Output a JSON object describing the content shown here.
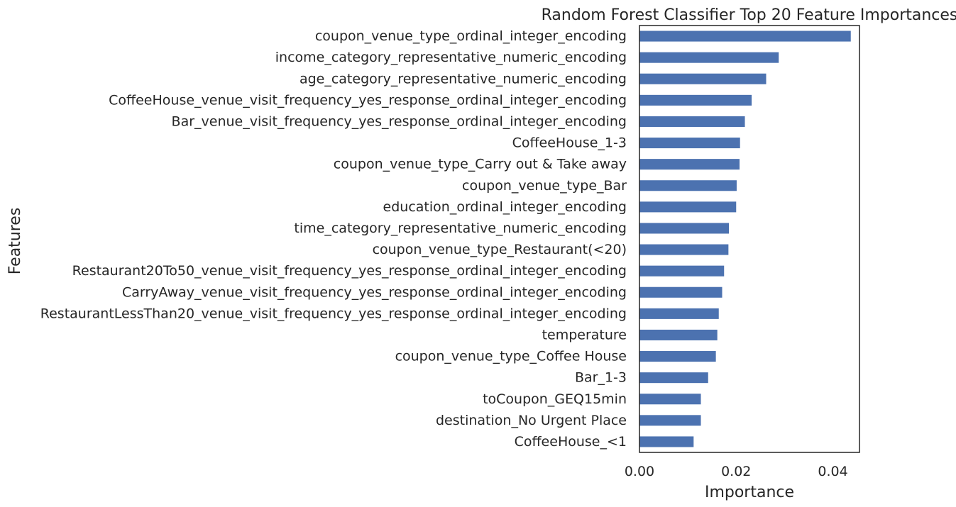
{
  "chart_data": {
    "type": "bar",
    "orientation": "horizontal",
    "title": "Random Forest Classifier Top 20 Feature Importances",
    "xlabel": "Importance",
    "ylabel": "Features",
    "xlim": [
      0,
      0.0455
    ],
    "xticks": [
      0.0,
      0.02,
      0.04
    ],
    "xtick_labels": [
      "0.00",
      "0.02",
      "0.04"
    ],
    "grid": false,
    "legend": "none",
    "bar_color": "#4c72b0",
    "categories": [
      "coupon_venue_type_ordinal_integer_encoding",
      "income_category_representative_numeric_encoding",
      "age_category_representative_numeric_encoding",
      "CoffeeHouse_venue_visit_frequency_yes_response_ordinal_integer_encoding",
      "Bar_venue_visit_frequency_yes_response_ordinal_integer_encoding",
      "CoffeeHouse_1-3",
      "coupon_venue_type_Carry out & Take away",
      "coupon_venue_type_Bar",
      "education_ordinal_integer_encoding",
      "time_category_representative_numeric_encoding",
      "coupon_venue_type_Restaurant(<20)",
      "Restaurant20To50_venue_visit_frequency_yes_response_ordinal_integer_encoding",
      "CarryAway_venue_visit_frequency_yes_response_ordinal_integer_encoding",
      "RestaurantLessThan20_venue_visit_frequency_yes_response_ordinal_integer_encoding",
      "temperature",
      "coupon_venue_type_Coffee House",
      "Bar_1-3",
      "toCoupon_GEQ15min",
      "destination_No Urgent Place",
      "CoffeeHouse_<1"
    ],
    "values": [
      0.0437,
      0.0288,
      0.0262,
      0.0232,
      0.0218,
      0.0208,
      0.0207,
      0.0201,
      0.02,
      0.0185,
      0.0184,
      0.0175,
      0.0171,
      0.0164,
      0.0161,
      0.0158,
      0.0142,
      0.0127,
      0.0127,
      0.0112
    ]
  }
}
